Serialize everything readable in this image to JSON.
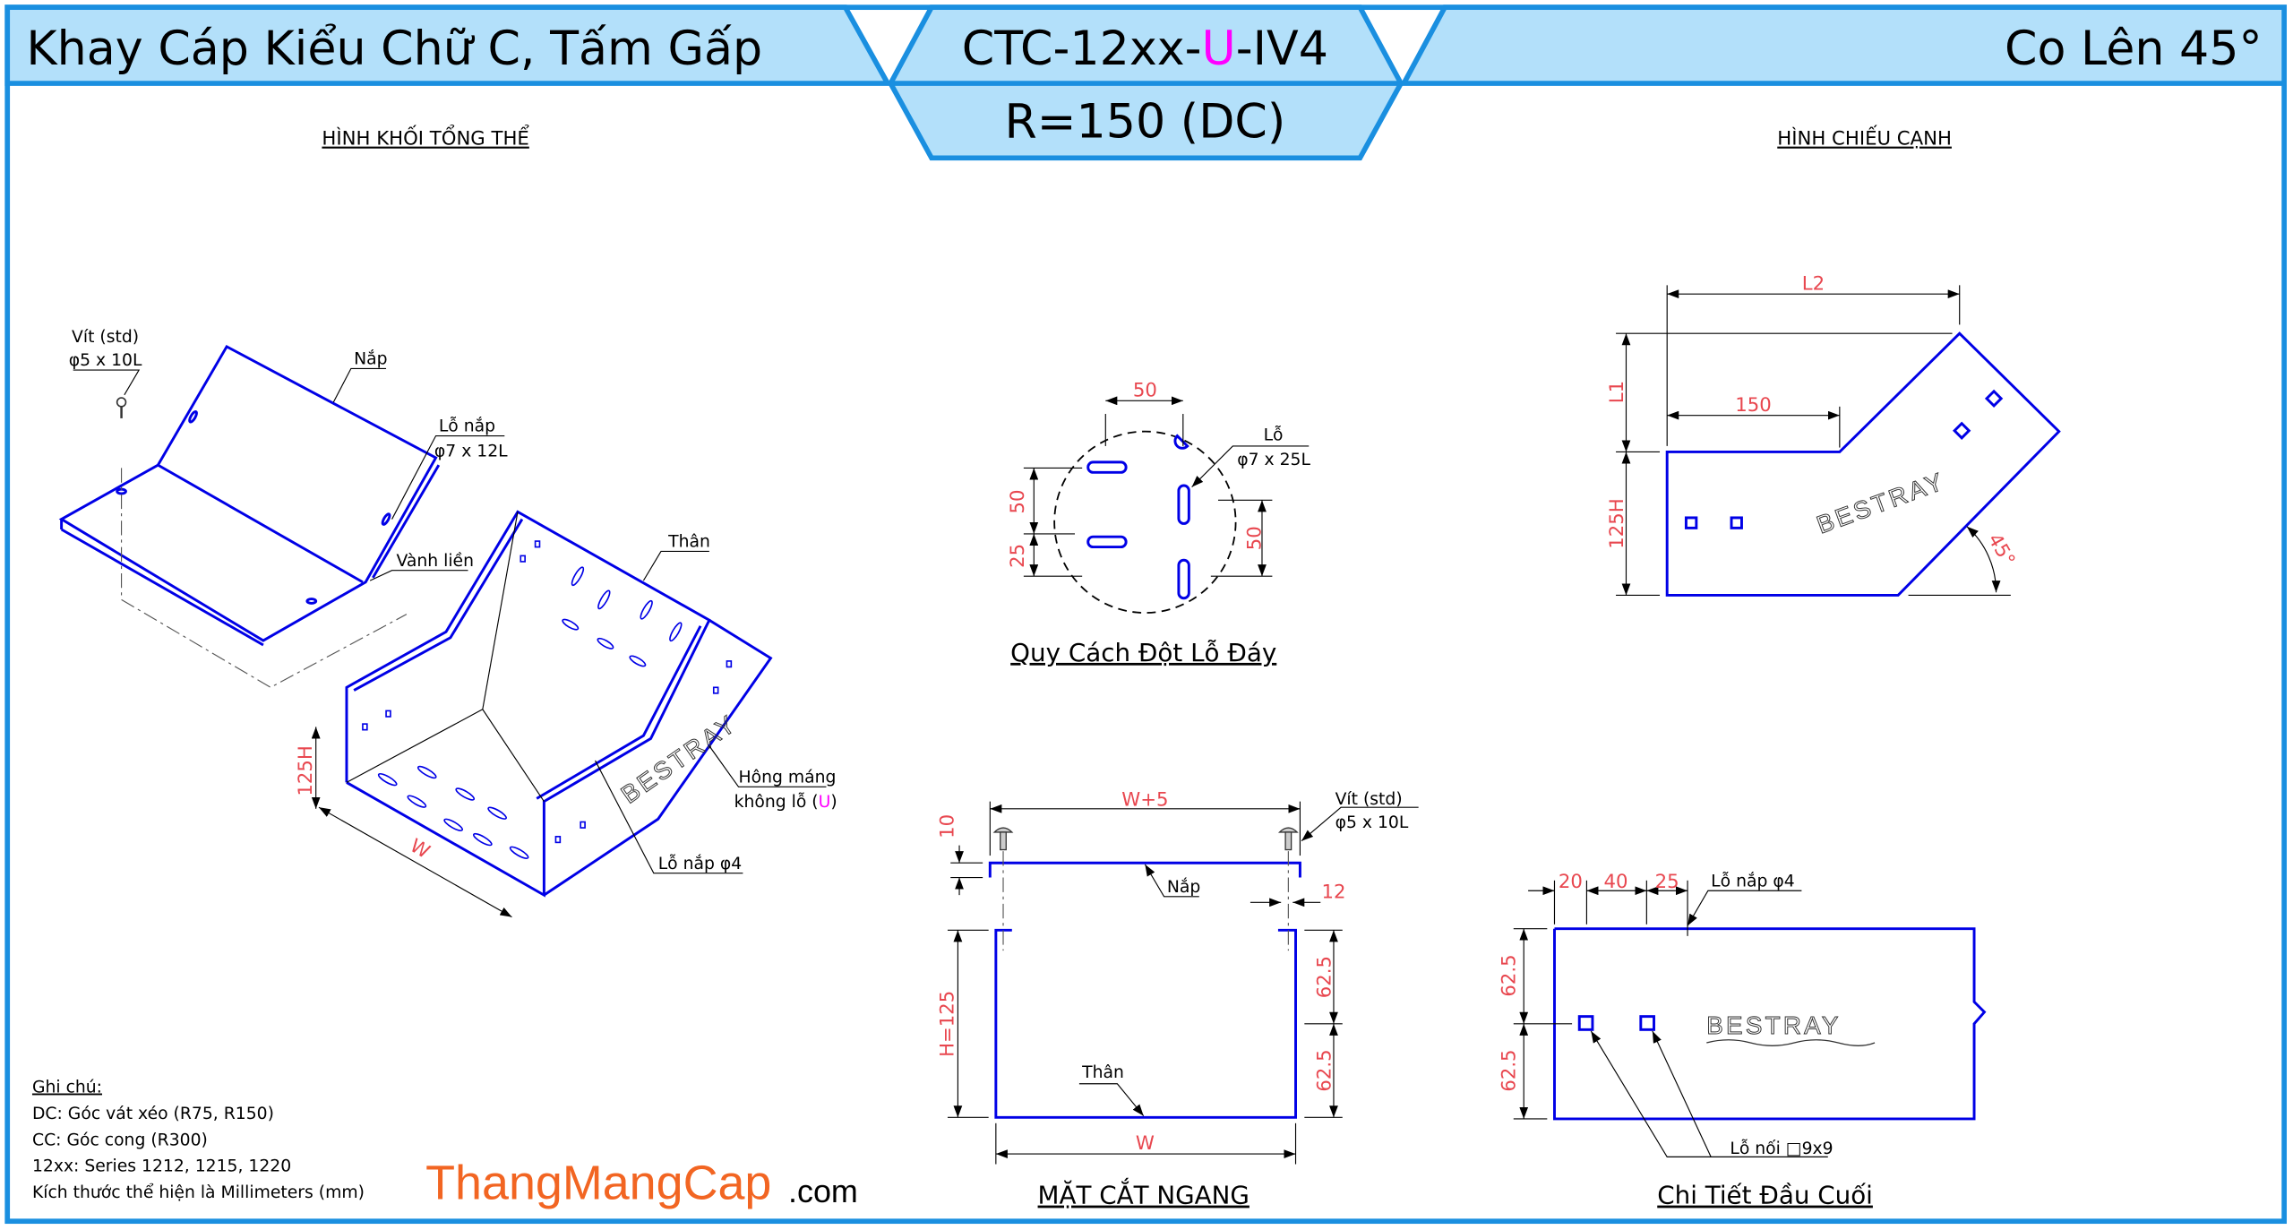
{
  "header": {
    "product_type": "Khay Cáp Kiểu Chữ C, Tấm Gấp",
    "code_prefix": "CTC-12xx-",
    "code_variant": "U",
    "code_suffix": "-IV4",
    "radius": "R=150 (DC)",
    "fitting": "Co Lên 45°"
  },
  "colors": {
    "frame": "#1a8fe0",
    "header_fill": "#b3e0fa",
    "drawing": "#0000e6",
    "dimension": "#e8474f",
    "variant": "#ff00ff",
    "logo": "#f26522"
  },
  "isometric": {
    "title": "HÌNH KHỐI TỔNG THỂ",
    "screw_label": "Vít (std)",
    "screw_size": "φ5 x 10L",
    "lid": "Nắp",
    "lid_hole": "Lỗ nắp",
    "lid_hole_size": "φ7 x 12L",
    "rim": "Vành liền",
    "body": "Thân",
    "side_a": "Hông máng",
    "side_b": "không lỗ (",
    "side_variant": "U",
    "side_c": ")",
    "lid_hole_4": "Lỗ nắp φ4",
    "height": "125H",
    "width": "W",
    "brand": "BESTRAY"
  },
  "bottom_holes": {
    "title": "Quy Cách Đột Lỗ Đáy",
    "hole_label": "Lỗ",
    "hole_size": "φ7 x 25L",
    "dim_top": "50",
    "dim_left_upper": "50",
    "dim_left_lower": "25",
    "dim_right": "50"
  },
  "side_view": {
    "title": "HÌNH CHIẾU CẠNH",
    "dim_l2": "L2",
    "dim_l1": "L1",
    "dim_150": "150",
    "dim_h": "125H",
    "angle": "45°",
    "brand": "BESTRAY"
  },
  "cross_section": {
    "title": "MẶT CẮT NGANG",
    "dim_width_lid": "W+5",
    "dim_10": "10",
    "dim_12": "12",
    "dim_height": "H=125",
    "dim_half_upper": "62.5",
    "dim_half_lower": "62.5",
    "dim_width": "W",
    "screw_label": "Vít (std)",
    "screw_size": "φ5 x 10L",
    "lid": "Nắp",
    "body": "Thân"
  },
  "end_detail": {
    "title": "Chi Tiết Đầu Cuối",
    "dim_20": "20",
    "dim_40": "40",
    "dim_25": "25",
    "lid_hole": "Lỗ nắp φ4",
    "dim_upper": "62.5",
    "dim_lower": "62.5",
    "joint_hole": "Lỗ nối □9x9",
    "brand": "BESTRAY"
  },
  "notes": {
    "heading": "Ghi chú:",
    "lines": [
      "DC: Góc vát xéo (R75, R150)",
      "CC: Góc cong (R300)",
      "12xx: Series 1212, 1215, 1220",
      "Kích thước thể hiện là Millimeters (mm)"
    ]
  },
  "logo": {
    "name": "ThangMangCap",
    "suffix": ".com"
  }
}
